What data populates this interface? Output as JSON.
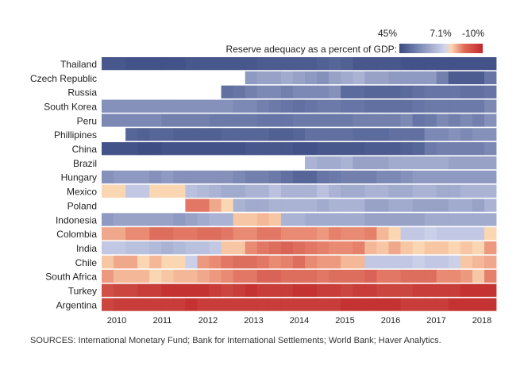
{
  "chart_data": {
    "type": "heatmap",
    "title": "",
    "legend": {
      "label": "Reserve adequacy as a percent of GDP:",
      "tick_labels": [
        "45%",
        "7.1%",
        "-10%"
      ],
      "scale_values": [
        45,
        7.1,
        -10
      ],
      "placement": "top-right",
      "colors": {
        "high": "#3b4b82",
        "mid": "#d1d6ec",
        "low": "#c0292b"
      }
    },
    "x_tick_labels": [
      "2010",
      "2011",
      "2012",
      "2013",
      "2014",
      "2015",
      "2016",
      "2017",
      "2018"
    ],
    "rows": [
      {
        "name": "Thailand",
        "values": [
          40,
          40,
          42,
          42,
          42,
          42,
          42,
          40,
          40,
          40,
          40,
          40,
          40,
          38,
          38,
          38,
          38,
          38,
          36,
          34,
          36,
          40,
          40,
          40,
          40,
          42,
          42,
          42,
          42,
          42,
          42,
          42,
          42
        ]
      },
      {
        "name": "Czech Republic",
        "values": [
          null,
          null,
          null,
          null,
          null,
          null,
          null,
          null,
          null,
          null,
          null,
          null,
          18,
          16,
          16,
          14,
          16,
          18,
          20,
          16,
          14,
          12,
          16,
          16,
          18,
          18,
          18,
          18,
          24,
          38,
          38,
          38,
          28
        ]
      },
      {
        "name": "Russia",
        "values": [
          null,
          null,
          null,
          null,
          null,
          null,
          null,
          null,
          null,
          null,
          30,
          28,
          24,
          22,
          22,
          24,
          22,
          22,
          22,
          20,
          32,
          32,
          34,
          34,
          34,
          32,
          30,
          28,
          28,
          28,
          30,
          30,
          28
        ]
      },
      {
        "name": "South Korea",
        "values": [
          20,
          20,
          20,
          20,
          20,
          20,
          20,
          20,
          20,
          20,
          20,
          22,
          22,
          24,
          26,
          28,
          30,
          28,
          26,
          26,
          28,
          28,
          30,
          30,
          30,
          30,
          28,
          26,
          26,
          26,
          26,
          26,
          22
        ]
      },
      {
        "name": "Peru",
        "values": [
          22,
          22,
          22,
          22,
          22,
          24,
          24,
          24,
          24,
          26,
          26,
          26,
          26,
          28,
          28,
          28,
          26,
          26,
          26,
          26,
          26,
          24,
          24,
          24,
          24,
          22,
          28,
          26,
          22,
          24,
          22,
          24,
          20
        ]
      },
      {
        "name": "Phillipines",
        "values": [
          null,
          null,
          34,
          36,
          34,
          34,
          36,
          36,
          36,
          36,
          34,
          34,
          34,
          34,
          36,
          36,
          34,
          30,
          30,
          30,
          30,
          32,
          32,
          32,
          30,
          30,
          30,
          22,
          22,
          20,
          22,
          20,
          20
        ]
      },
      {
        "name": "China",
        "values": [
          42,
          42,
          42,
          44,
          44,
          42,
          42,
          42,
          42,
          42,
          42,
          42,
          40,
          40,
          40,
          40,
          42,
          42,
          40,
          40,
          40,
          40,
          38,
          38,
          38,
          36,
          34,
          26,
          24,
          24,
          24,
          24,
          22
        ]
      },
      {
        "name": "Brazil",
        "values": [
          null,
          null,
          null,
          null,
          null,
          null,
          null,
          null,
          null,
          null,
          null,
          null,
          null,
          null,
          null,
          null,
          null,
          12,
          14,
          14,
          12,
          16,
          16,
          16,
          14,
          14,
          14,
          14,
          14,
          16,
          16,
          16,
          16
        ]
      },
      {
        "name": "Hungary",
        "values": [
          20,
          18,
          18,
          18,
          20,
          18,
          20,
          20,
          20,
          20,
          20,
          22,
          24,
          24,
          26,
          30,
          34,
          34,
          28,
          26,
          24,
          24,
          24,
          22,
          22,
          20,
          18,
          18,
          18,
          18,
          18,
          18,
          18
        ]
      },
      {
        "name": "Mexico",
        "values": [
          5,
          5,
          9,
          9,
          5,
          5,
          5,
          10,
          11,
          12,
          14,
          14,
          12,
          12,
          10,
          12,
          12,
          12,
          10,
          12,
          14,
          14,
          12,
          12,
          14,
          14,
          12,
          12,
          14,
          14,
          12,
          12,
          12
        ]
      },
      {
        "name": "Poland",
        "values": [
          null,
          null,
          null,
          null,
          null,
          null,
          null,
          -2,
          -2,
          2,
          5,
          12,
          14,
          14,
          12,
          12,
          12,
          12,
          14,
          12,
          12,
          12,
          16,
          16,
          14,
          14,
          16,
          16,
          16,
          14,
          14,
          16,
          12
        ]
      },
      {
        "name": "Indonesia",
        "values": [
          18,
          16,
          16,
          16,
          16,
          16,
          18,
          16,
          14,
          12,
          12,
          4,
          4,
          3,
          4,
          12,
          12,
          14,
          14,
          14,
          14,
          14,
          16,
          16,
          16,
          16,
          16,
          14,
          14,
          14,
          14,
          14,
          14
        ]
      },
      {
        "name": "Colombia",
        "values": [
          2,
          2,
          0,
          0,
          -3,
          -3,
          -2,
          -2,
          -3,
          -3,
          -2,
          0,
          0,
          -2,
          -2,
          0,
          0,
          0,
          1,
          -1,
          0,
          0,
          -1,
          3,
          5,
          9,
          9,
          8,
          9,
          9,
          9,
          9,
          5
        ]
      },
      {
        "name": "India",
        "values": [
          9,
          9,
          10,
          10,
          11,
          12,
          11,
          10,
          10,
          9,
          4,
          4,
          0,
          -2,
          -3,
          -4,
          -3,
          -2,
          -1,
          0,
          0,
          -1,
          3,
          4,
          2,
          4,
          5,
          4,
          4,
          5,
          4,
          5,
          1
        ]
      },
      {
        "name": "Chile",
        "values": [
          4,
          2,
          2,
          5,
          3,
          5,
          5,
          8,
          1,
          0,
          -2,
          -3,
          -3,
          -2,
          0,
          -1,
          -3,
          0,
          1,
          1,
          3,
          3,
          9,
          9,
          9,
          9,
          8,
          9,
          9,
          8,
          4,
          3,
          2
        ]
      },
      {
        "name": "South Africa",
        "values": [
          1,
          3,
          3,
          3,
          5,
          4,
          3,
          3,
          2,
          1,
          0,
          -2,
          -2,
          -4,
          -4,
          -3,
          -3,
          -3,
          -2,
          -3,
          -3,
          -3,
          -4,
          -2,
          -2,
          -3,
          -3,
          -3,
          0,
          0,
          1,
          4,
          -1
        ]
      },
      {
        "name": "Turkey",
        "values": [
          -6,
          -7,
          -7,
          -8,
          -8,
          -9,
          -9,
          -9,
          -9,
          -8,
          -7,
          -8,
          -9,
          -8,
          -8,
          -8,
          -9,
          -9,
          -8,
          -8,
          -7,
          -8,
          -8,
          -7,
          -7,
          -7,
          -8,
          -8,
          -8,
          -8,
          -9,
          -9,
          -9
        ]
      },
      {
        "name": "Argentina",
        "values": [
          -7,
          -8,
          -8,
          -8,
          -8,
          -8,
          -8,
          -9,
          -8,
          -8,
          -8,
          -8,
          -8,
          -8,
          -8,
          -8,
          -8,
          -8,
          -8,
          -8,
          -9,
          -9,
          -9,
          -9,
          -9,
          -8,
          -8,
          -8,
          -8,
          -9,
          -9,
          -9,
          -9
        ]
      }
    ]
  },
  "sources": "SOURCES: International Monetary Fund; Bank for International Settlements; World Bank; Haver Analytics."
}
